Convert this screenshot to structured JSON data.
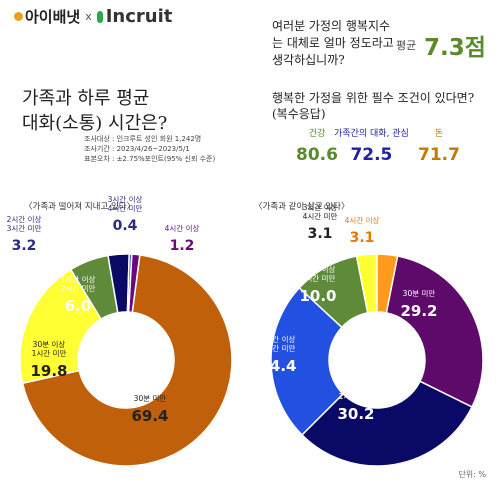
{
  "header": {
    "brand_a": "아이배냇",
    "brand_sep": "x",
    "brand_b": "Incruit"
  },
  "question1": {
    "text": "여러분 가정의 행복지수는 대체로 얼마 정도라고 생각하십니까?",
    "avg_label": "평균",
    "avg_value": "7.3점"
  },
  "title": {
    "line1": "가족과 하루 평균",
    "line2": "대화(소통) 시간은?"
  },
  "survey": {
    "line1": "조사대상 : 인크루트 성인 회원 1,242명",
    "line2": "조사기간 : 2023/4/26~2023/5/1",
    "line3": "표본오차 : ±2.75%포인트(95% 신뢰 수준)"
  },
  "question2": {
    "line1": "행복한 가정을 위한 필수 조건이 있다면?",
    "line2": "(복수응답)"
  },
  "conditions": [
    {
      "label": "건강",
      "value": "80.6",
      "color": "#5a8a2a"
    },
    {
      "label": "가족간의 대화, 관심",
      "value": "72.5",
      "color": "#2020a0"
    },
    {
      "label": "돈",
      "value": "71.7",
      "color": "#c07a00"
    }
  ],
  "unit": "단위: %",
  "chart_data": [
    {
      "type": "pie",
      "title": "〈가족과 떨어져 지내고 있다〉",
      "categories": [
        "30분 미만",
        "30분 이상 1시간 미만",
        "1시간 이상 2시간 미만",
        "2시간 이상 3시간 미만",
        "3시간 이상 4시간 미만",
        "4시간 이상"
      ],
      "values": [
        69.4,
        19.8,
        6.0,
        3.2,
        0.4,
        1.2
      ],
      "colors": [
        "#c0600a",
        "#ffff33",
        "#5e8a3a",
        "#0a0a66",
        "#2250e0",
        "#6a0a7a"
      ],
      "label_colors": [
        "#222222",
        "#222222",
        "#ffffff",
        "#2a2a80",
        "#2a2a80",
        "#6a0a7a"
      ]
    },
    {
      "type": "pie",
      "title": "〈가족과 같이 살고 있다〉",
      "categories": [
        "30분 미만",
        "30분 이상 1시간 미만",
        "1시간 이상 2시간 미만",
        "2시간 이상 3시간 미만",
        "3시간 이상 4시간 미만",
        "4시간 이상"
      ],
      "values": [
        29.2,
        30.2,
        24.4,
        10.0,
        3.1,
        3.1
      ],
      "colors": [
        "#5e0a6a",
        "#0a0a66",
        "#2250e0",
        "#5e8a3a",
        "#ffff33",
        "#ff9a1a"
      ],
      "label_colors": [
        "#ffffff",
        "#ffffff",
        "#ffffff",
        "#ffffff",
        "#222222",
        "#e07a00"
      ]
    }
  ]
}
